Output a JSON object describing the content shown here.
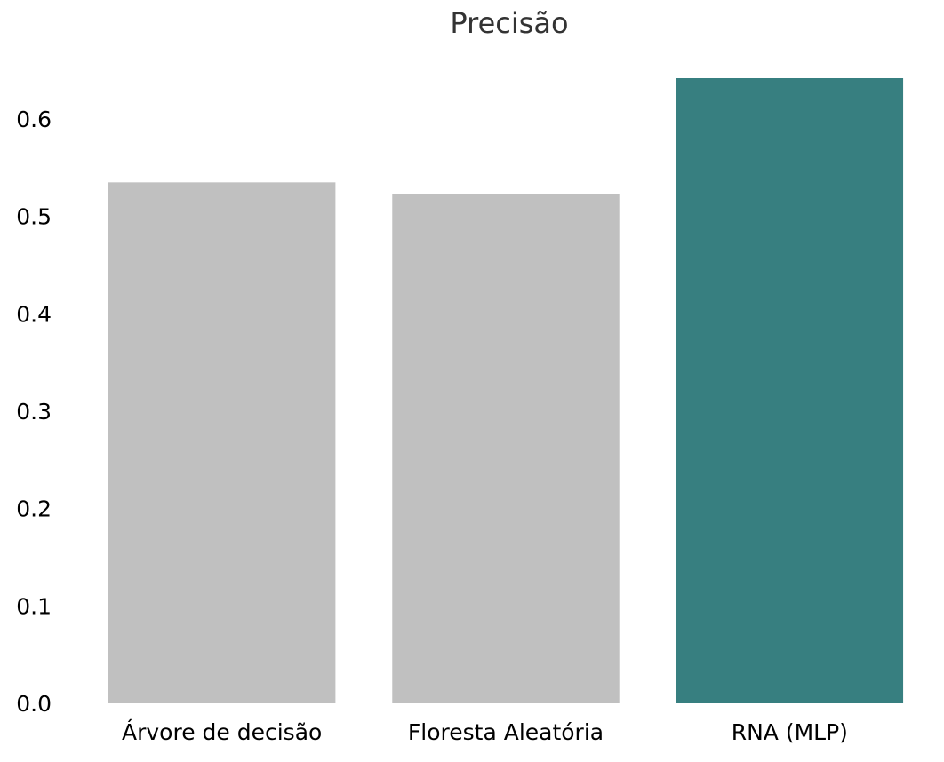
{
  "chart_data": {
    "type": "bar",
    "title": "Precisão",
    "xlabel": "",
    "ylabel": "",
    "categories": [
      "Árvore de decisão",
      "Floresta Aleatória",
      "RNA (MLP)"
    ],
    "values": [
      0.535,
      0.523,
      0.642
    ],
    "colors": [
      "#c0c0c0",
      "#c0c0c0",
      "#377f80"
    ],
    "ylim": [
      0,
      0.642
    ],
    "yticks": [
      "0.0",
      "0.1",
      "0.2",
      "0.3",
      "0.4",
      "0.5",
      "0.6"
    ],
    "grid": false,
    "legend": "none"
  }
}
